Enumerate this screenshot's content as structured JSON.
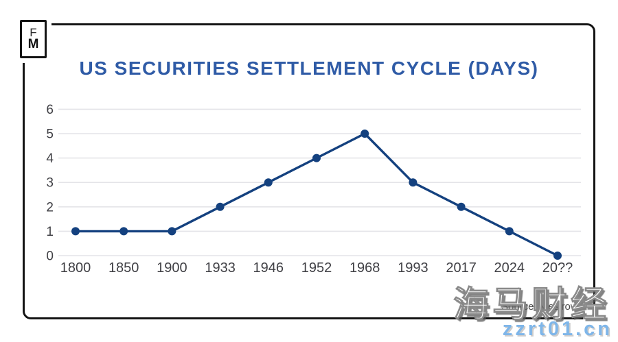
{
  "logo": {
    "letter_top": "F",
    "letter_bottom": "M"
  },
  "header": {
    "title_color": "#2f5ba6"
  },
  "chart_data": {
    "type": "line",
    "title": "US SECURITIES SETTLEMENT CYCLE (DAYS)",
    "categories": [
      "1800",
      "1850",
      "1900",
      "1933",
      "1946",
      "1952",
      "1968",
      "1993",
      "2017",
      "2024",
      "20??"
    ],
    "values": [
      1,
      1,
      1,
      2,
      3,
      4,
      5,
      3,
      2,
      1,
      0
    ],
    "series_name": "Settlement cycle (days)",
    "xlabel": "",
    "ylabel": "",
    "ylim": [
      0,
      6
    ],
    "yticks": [
      0,
      1,
      2,
      3,
      4,
      5,
      6
    ],
    "grid": "horizontal",
    "legend_position": "none",
    "line_color": "#14417f",
    "marker_color": "#14417f",
    "grid_color": "#e4e4e8",
    "axis_text_color": "#404045"
  },
  "footer": {
    "source": "Source: Mesirow",
    "source_color": "#4a4a4a"
  },
  "watermarks": {
    "cjk": "海马财经",
    "site": "zzrt01.cn",
    "site_color": "#7fb6e9"
  }
}
